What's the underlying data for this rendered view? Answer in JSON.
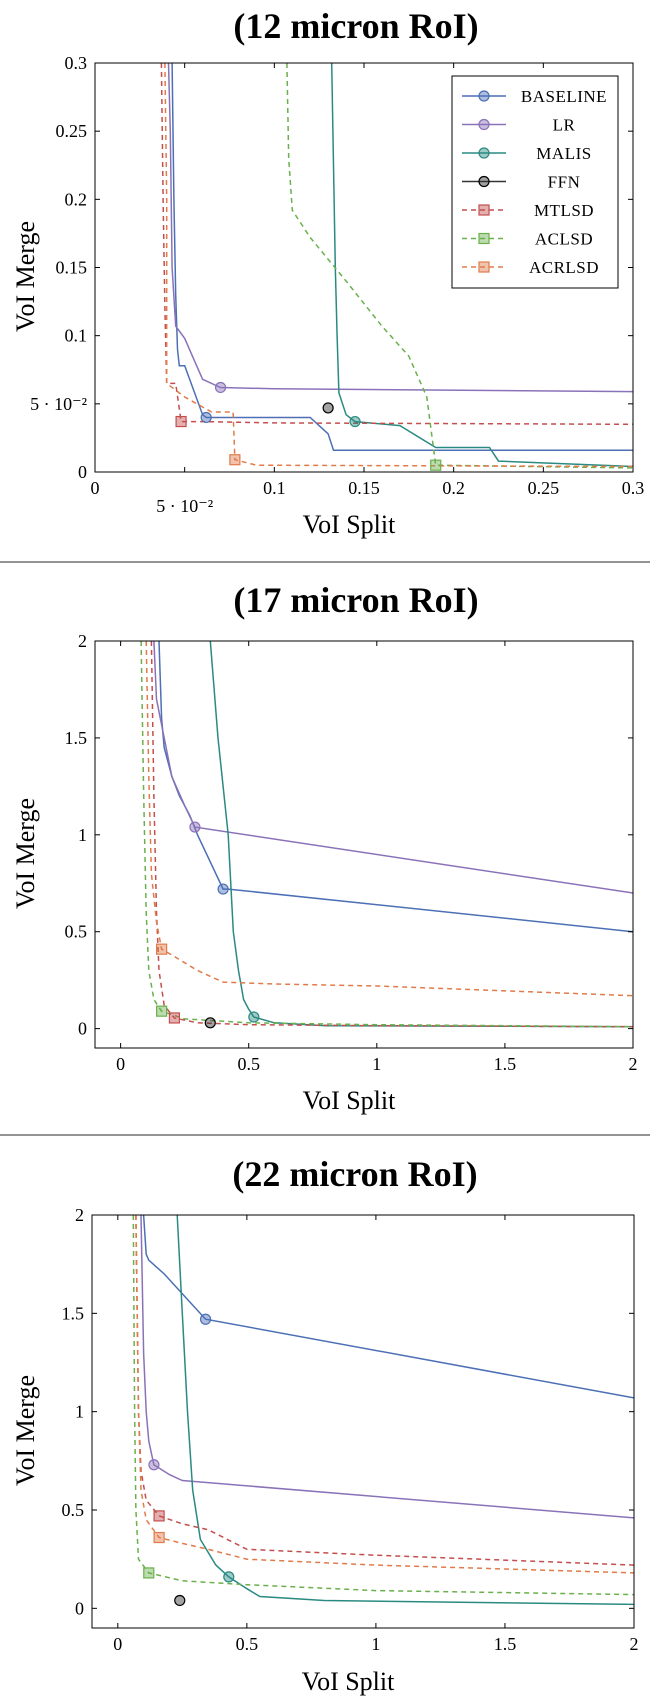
{
  "figure": "VoI Merge vs VoI Split tradeoff for three RoI sizes",
  "legend": [
    {
      "name": "Baseline",
      "display": "BASELINE",
      "color": "#4c6fb5",
      "dash": false,
      "marker": "circle"
    },
    {
      "name": "LR",
      "display": "LR",
      "color": "#8a72b8",
      "dash": false,
      "marker": "circle"
    },
    {
      "name": "Malis",
      "display": "MALIS",
      "color": "#2a8a82",
      "dash": false,
      "marker": "circle"
    },
    {
      "name": "FFN",
      "display": "FFN",
      "color": "#333333",
      "dash": false,
      "marker": "circle"
    },
    {
      "name": "MtLsd",
      "display": "MTLSD",
      "color": "#c44e4e",
      "dash": true,
      "marker": "square"
    },
    {
      "name": "AcLsd",
      "display": "ACLSD",
      "color": "#6ab04c",
      "dash": true,
      "marker": "square"
    },
    {
      "name": "AcRLsd",
      "display": "ACRLSD",
      "color": "#e07b4a",
      "dash": true,
      "marker": "square"
    }
  ],
  "chart_data": [
    {
      "type": "line",
      "title": "(12 micron RoI)",
      "xlabel": "VoI Split",
      "ylabel": "VoI Merge",
      "xlim": [
        0,
        0.3
      ],
      "ylim": [
        0,
        0.3
      ],
      "xticks": [
        0,
        0.05,
        0.1,
        0.15,
        0.2,
        0.25,
        0.3
      ],
      "xtick_labels": [
        "0",
        "5 · 10⁻²",
        "0.1",
        "0.15",
        "0.2",
        "0.25",
        "0.3"
      ],
      "yticks": [
        0,
        0.05,
        0.1,
        0.15,
        0.2,
        0.25,
        0.3
      ],
      "ytick_labels": [
        "0",
        "5 · 10⁻²",
        "0.1",
        "0.15",
        "0.2",
        "0.25",
        "0.3"
      ],
      "legend_position": "top-right",
      "series": [
        {
          "name": "Baseline",
          "x": [
            0.043,
            0.044,
            0.045,
            0.046,
            0.047,
            0.05,
            0.06,
            0.062,
            0.12,
            0.13,
            0.133,
            0.3
          ],
          "y": [
            0.3,
            0.2,
            0.13,
            0.09,
            0.078,
            0.078,
            0.042,
            0.04,
            0.04,
            0.028,
            0.016,
            0.016
          ],
          "marker": [
            0.062,
            0.04
          ]
        },
        {
          "name": "LR",
          "x": [
            0.041,
            0.042,
            0.043,
            0.045,
            0.05,
            0.055,
            0.06,
            0.07,
            0.1,
            0.3
          ],
          "y": [
            0.3,
            0.25,
            0.15,
            0.107,
            0.098,
            0.083,
            0.068,
            0.062,
            0.061,
            0.059
          ],
          "marker": [
            0.07,
            0.062
          ]
        },
        {
          "name": "Malis",
          "x": [
            0.132,
            0.134,
            0.135,
            0.136,
            0.14,
            0.145,
            0.17,
            0.19,
            0.22,
            0.225,
            0.3
          ],
          "y": [
            0.3,
            0.15,
            0.1,
            0.058,
            0.042,
            0.037,
            0.034,
            0.018,
            0.018,
            0.008,
            0.004
          ],
          "marker": [
            0.145,
            0.037
          ]
        },
        {
          "name": "FFN",
          "x": [],
          "y": [],
          "marker": [
            0.13,
            0.047
          ]
        },
        {
          "name": "MtLsd",
          "x": [
            0.037,
            0.038,
            0.039,
            0.04,
            0.045,
            0.048,
            0.06,
            0.1,
            0.3
          ],
          "y": [
            0.3,
            0.2,
            0.12,
            0.065,
            0.065,
            0.037,
            0.037,
            0.036,
            0.035
          ],
          "marker": [
            0.048,
            0.037
          ]
        },
        {
          "name": "AcLsd",
          "x": [
            0.107,
            0.108,
            0.11,
            0.12,
            0.14,
            0.16,
            0.175,
            0.185,
            0.19,
            0.3
          ],
          "y": [
            0.3,
            0.23,
            0.192,
            0.172,
            0.14,
            0.107,
            0.085,
            0.055,
            0.005,
            0.003
          ],
          "marker": [
            0.19,
            0.005
          ]
        },
        {
          "name": "AcRLsd",
          "x": [
            0.039,
            0.04,
            0.04,
            0.05,
            0.065,
            0.077,
            0.078,
            0.09,
            0.3
          ],
          "y": [
            0.3,
            0.2,
            0.065,
            0.055,
            0.044,
            0.044,
            0.009,
            0.005,
            0.004
          ],
          "marker": [
            0.078,
            0.009
          ]
        }
      ]
    },
    {
      "type": "line",
      "title": "(17 micron RoI)",
      "xlabel": "VoI Split",
      "ylabel": "VoI Merge",
      "xlim": [
        -0.1,
        2
      ],
      "ylim": [
        -0.1,
        2
      ],
      "xticks": [
        0,
        0.5,
        1,
        1.5,
        2
      ],
      "xtick_labels": [
        "0",
        "0.5",
        "1",
        "1.5",
        "2"
      ],
      "yticks": [
        0,
        0.5,
        1,
        1.5,
        2
      ],
      "ytick_labels": [
        "0",
        "0.5",
        "1",
        "1.5",
        "2"
      ],
      "legend_position": "none",
      "series": [
        {
          "name": "Baseline",
          "x": [
            0.15,
            0.16,
            0.17,
            0.2,
            0.23,
            0.27,
            0.3,
            0.4,
            0.42,
            2
          ],
          "y": [
            2,
            1.6,
            1.45,
            1.3,
            1.2,
            1.1,
            1.0,
            0.72,
            0.72,
            0.5
          ],
          "marker": [
            0.4,
            0.72
          ]
        },
        {
          "name": "LR",
          "x": [
            0.13,
            0.14,
            0.17,
            0.2,
            0.25,
            0.29,
            2
          ],
          "y": [
            2,
            1.7,
            1.5,
            1.3,
            1.15,
            1.04,
            0.7
          ],
          "marker": [
            0.29,
            1.04
          ]
        },
        {
          "name": "Malis",
          "x": [
            0.35,
            0.38,
            0.42,
            0.44,
            0.46,
            0.48,
            0.5,
            0.52,
            0.6,
            0.8,
            2
          ],
          "y": [
            2,
            1.5,
            1.0,
            0.5,
            0.3,
            0.15,
            0.1,
            0.06,
            0.03,
            0.015,
            0.01
          ],
          "marker": [
            0.52,
            0.06
          ]
        },
        {
          "name": "FFN",
          "x": [],
          "y": [],
          "marker": [
            0.35,
            0.03
          ]
        },
        {
          "name": "MtLsd",
          "x": [
            0.12,
            0.13,
            0.14,
            0.15,
            0.17,
            0.21,
            0.3,
            0.5,
            1,
            2
          ],
          "y": [
            2,
            1.2,
            0.6,
            0.3,
            0.12,
            0.055,
            0.03,
            0.02,
            0.015,
            0.01
          ],
          "marker": [
            0.21,
            0.055
          ]
        },
        {
          "name": "AcLsd",
          "x": [
            0.08,
            0.09,
            0.1,
            0.11,
            0.13,
            0.16,
            0.25,
            0.5,
            1,
            2
          ],
          "y": [
            2,
            1.2,
            0.6,
            0.3,
            0.15,
            0.09,
            0.05,
            0.03,
            0.02,
            0.01
          ],
          "marker": [
            0.16,
            0.09
          ]
        },
        {
          "name": "AcRLsd",
          "x": [
            0.1,
            0.11,
            0.12,
            0.14,
            0.16,
            0.2,
            0.3,
            0.4,
            0.6,
            1.0,
            2
          ],
          "y": [
            2,
            1.3,
            0.8,
            0.55,
            0.41,
            0.38,
            0.3,
            0.24,
            0.23,
            0.22,
            0.17
          ],
          "marker": [
            0.16,
            0.41
          ]
        }
      ]
    },
    {
      "type": "line",
      "title": "(22 micron RoI)",
      "xlabel": "VoI Split",
      "ylabel": "VoI Merge",
      "xlim": [
        -0.1,
        2
      ],
      "ylim": [
        -0.1,
        2
      ],
      "xticks": [
        0,
        0.5,
        1,
        1.5,
        2
      ],
      "xtick_labels": [
        "0",
        "0.5",
        "1",
        "1.5",
        "2"
      ],
      "yticks": [
        0,
        0.5,
        1,
        1.5,
        2
      ],
      "ytick_labels": [
        "0",
        "0.5",
        "1",
        "1.5",
        "2"
      ],
      "legend_position": "none",
      "series": [
        {
          "name": "Baseline",
          "x": [
            0.1,
            0.11,
            0.12,
            0.18,
            0.25,
            0.34,
            2
          ],
          "y": [
            2,
            1.8,
            1.77,
            1.7,
            1.6,
            1.47,
            1.07
          ],
          "marker": [
            0.34,
            1.47
          ]
        },
        {
          "name": "LR",
          "x": [
            0.09,
            0.1,
            0.11,
            0.12,
            0.14,
            0.2,
            0.25,
            2
          ],
          "y": [
            2,
            1.3,
            1.0,
            0.85,
            0.73,
            0.68,
            0.65,
            0.46
          ],
          "marker": [
            0.14,
            0.73
          ]
        },
        {
          "name": "Malis",
          "x": [
            0.23,
            0.25,
            0.27,
            0.29,
            0.32,
            0.38,
            0.43,
            0.5,
            0.55,
            0.8,
            2
          ],
          "y": [
            2,
            1.5,
            1.0,
            0.6,
            0.35,
            0.22,
            0.16,
            0.1,
            0.06,
            0.04,
            0.02
          ],
          "marker": [
            0.43,
            0.16
          ]
        },
        {
          "name": "FFN",
          "x": [],
          "y": [],
          "marker": [
            0.24,
            0.04
          ]
        },
        {
          "name": "MtLsd",
          "x": [
            0.07,
            0.08,
            0.09,
            0.11,
            0.16,
            0.25,
            0.35,
            0.5,
            1.0,
            2
          ],
          "y": [
            2,
            1.0,
            0.7,
            0.55,
            0.47,
            0.43,
            0.4,
            0.3,
            0.27,
            0.22
          ],
          "marker": [
            0.16,
            0.47
          ]
        },
        {
          "name": "AcLsd",
          "x": [
            0.06,
            0.065,
            0.07,
            0.08,
            0.12,
            0.25,
            0.5,
            1.0,
            2
          ],
          "y": [
            2,
            1.0,
            0.5,
            0.25,
            0.18,
            0.14,
            0.12,
            0.09,
            0.07
          ],
          "marker": [
            0.12,
            0.18
          ]
        },
        {
          "name": "AcRLsd",
          "x": [
            0.07,
            0.08,
            0.09,
            0.11,
            0.16,
            0.25,
            0.35,
            0.5,
            1.0,
            2
          ],
          "y": [
            2,
            1.0,
            0.6,
            0.45,
            0.36,
            0.33,
            0.3,
            0.25,
            0.22,
            0.18
          ],
          "marker": [
            0.16,
            0.36
          ]
        }
      ]
    }
  ]
}
